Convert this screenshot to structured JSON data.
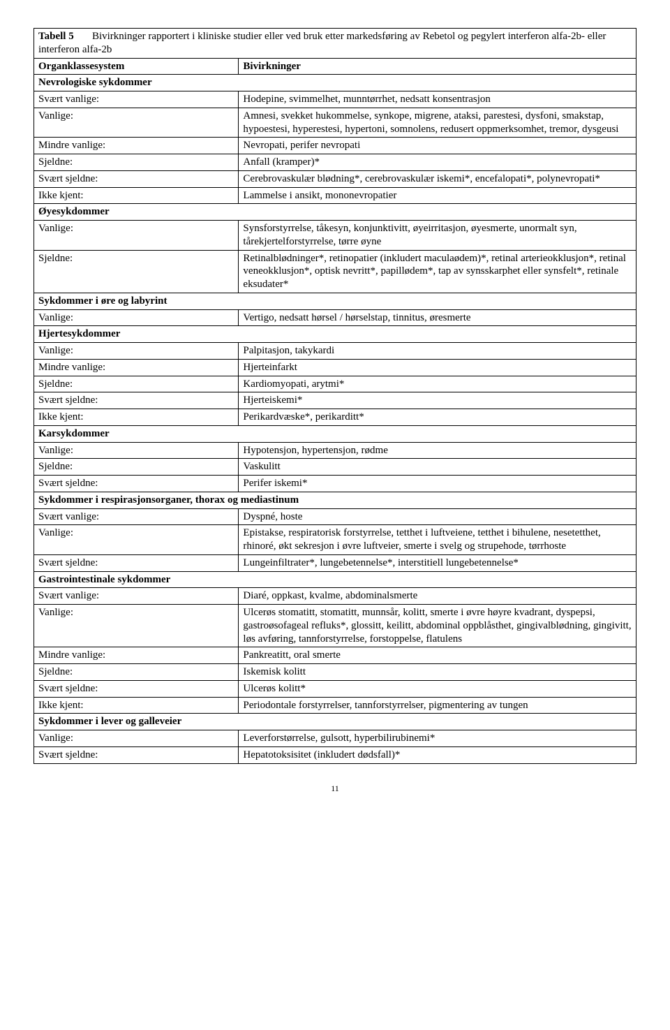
{
  "header": {
    "title_label": "Tabell 5",
    "title_desc": "Bivirkninger rapportert i kliniske studier eller ved bruk etter markedsføring av Rebetol og pegylert interferon alfa-2b- eller interferon alfa-2b",
    "col_left": "Organklassesystem",
    "col_right": "Bivirkninger"
  },
  "sections": [
    {
      "name": "Nevrologiske sykdommer",
      "rows": [
        {
          "freq": "Svært vanlige:",
          "text": "Hodepine, svimmelhet, munntørrhet, nedsatt konsentrasjon"
        },
        {
          "freq": "Vanlige:",
          "text": "Amnesi, svekket hukommelse, synkope, migrene, ataksi, parestesi, dysfoni, smakstap, hypoestesi, hyperestesi, hypertoni, somnolens, redusert oppmerksomhet, tremor, dysgeusi"
        },
        {
          "freq": "Mindre vanlige:",
          "text": "Nevropati, perifer nevropati"
        },
        {
          "freq": "Sjeldne:",
          "text": "Anfall (kramper)*"
        },
        {
          "freq": "Svært sjeldne:",
          "text": "Cerebrovaskulær blødning*, cerebrovaskulær iskemi*, encefalopati*, polynevropati*"
        },
        {
          "freq": "Ikke kjent:",
          "text": "Lammelse i ansikt, mononevropatier"
        }
      ]
    },
    {
      "name": "Øyesykdommer",
      "rows": [
        {
          "freq": "Vanlige:",
          "text": "Synsforstyrrelse, tåkesyn, konjunktivitt, øyeirritasjon, øyesmerte, unormalt syn, tårekjertelforstyrrelse, tørre øyne"
        },
        {
          "freq": "Sjeldne:",
          "text": "Retinalblødninger*, retinopatier (inkludert maculaødem)*, retinal arterieokklusjon*, retinal veneokklusjon*, optisk nevritt*, papillødem*, tap av synsskarphet eller synsfelt*, retinale eksudater*"
        }
      ]
    },
    {
      "name": "Sykdommer i øre og labyrint",
      "rows": [
        {
          "freq": "Vanlige:",
          "text": "Vertigo, nedsatt hørsel / hørselstap, tinnitus, øresmerte"
        }
      ]
    },
    {
      "name": "Hjertesykdommer",
      "rows": [
        {
          "freq": "Vanlige:",
          "text": "Palpitasjon, takykardi"
        },
        {
          "freq": "Mindre vanlige:",
          "text": "Hjerteinfarkt"
        },
        {
          "freq": "Sjeldne:",
          "text": "Kardiomyopati, arytmi*"
        },
        {
          "freq": "Svært sjeldne:",
          "text": "Hjerteiskemi*"
        },
        {
          "freq": "Ikke kjent:",
          "text": "Perikardvæske*, perikarditt*"
        }
      ]
    },
    {
      "name": "Karsykdommer",
      "rows": [
        {
          "freq": "Vanlige:",
          "text": "Hypotensjon, hypertensjon, rødme"
        },
        {
          "freq": "Sjeldne:",
          "text": "Vaskulitt"
        },
        {
          "freq": "Svært sjeldne:",
          "text": "Perifer iskemi*"
        }
      ]
    },
    {
      "name": "Sykdommer i respirasjonsorganer, thorax og mediastinum",
      "rows": [
        {
          "freq": "Svært vanlige:",
          "text": "Dyspné, hoste"
        },
        {
          "freq": "Vanlige:",
          "text": "Epistakse, respiratorisk forstyrrelse, tetthet i luftveiene, tetthet i bihulene, nesetetthet, rhinoré, økt sekresjon i øvre luftveier, smerte i svelg og strupehode, tørrhoste"
        },
        {
          "freq": "Svært sjeldne:",
          "text": "Lungeinfiltrater*, lungebetennelse*, interstitiell lungebetennelse*"
        }
      ]
    },
    {
      "name": "Gastrointestinale sykdommer",
      "rows": [
        {
          "freq": "Svært vanlige:",
          "text": "Diaré, oppkast, kvalme, abdominalsmerte"
        },
        {
          "freq": "Vanlige:",
          "text": "Ulcerøs stomatitt, stomatitt, munnsår, kolitt, smerte i øvre høyre kvadrant, dyspepsi, gastroøsofageal refluks*, glossitt, keilitt, abdominal oppblåsthet, gingivalblødning, gingivitt, løs avføring, tannforstyrrelse, forstoppelse, flatulens"
        },
        {
          "freq": "Mindre vanlige:",
          "text": "Pankreatitt, oral smerte"
        },
        {
          "freq": "Sjeldne:",
          "text": "Iskemisk kolitt"
        },
        {
          "freq": "Svært sjeldne:",
          "text": "Ulcerøs kolitt*"
        },
        {
          "freq": "Ikke kjent:",
          "text": "Periodontale forstyrrelser, tannforstyrrelser, pigmentering av tungen"
        }
      ]
    },
    {
      "name": "Sykdommer i lever og galleveier",
      "rows": [
        {
          "freq": "Vanlige:",
          "text": "Leverforstørrelse, gulsott, hyperbilirubinemi*"
        },
        {
          "freq": "Svært sjeldne:",
          "text": "Hepatotoksisitet (inkludert dødsfall)*"
        }
      ]
    }
  ],
  "page_number": "11"
}
